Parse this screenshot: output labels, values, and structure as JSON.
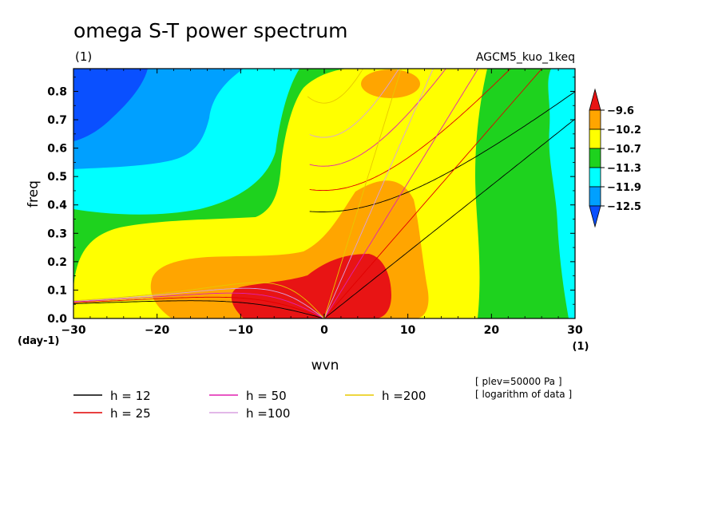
{
  "chart_data": {
    "type": "heatmap",
    "title": "omega S-T power spectrum",
    "subtitle_units": "(1)",
    "run_name": "AGCM5_kuo_1keq",
    "xlabel": "wvn",
    "ylabel": "freq",
    "x_units": "(1)",
    "y_units": "(day-1)",
    "xlim": [
      -30,
      30
    ],
    "ylim": [
      0.0,
      0.88
    ],
    "x_ticks": [
      -30,
      -20,
      -10,
      0,
      10,
      20,
      30
    ],
    "x_tick_labels": [
      "−30",
      "−20",
      "−10",
      "0",
      "10",
      "20",
      "30"
    ],
    "y_ticks": [
      0.0,
      0.1,
      0.2,
      0.3,
      0.4,
      0.5,
      0.6,
      0.7,
      0.8
    ],
    "y_tick_labels": [
      "0.0",
      "0.1",
      "0.2",
      "0.3",
      "0.4",
      "0.5",
      "0.6",
      "0.7",
      "0.8"
    ],
    "colorbar": {
      "levels": [
        "−9.6",
        "−10.2",
        "−10.7",
        "−11.3",
        "−11.9",
        "−12.5"
      ],
      "colors": [
        "#e81414",
        "#ffa500",
        "#ffff00",
        "#1ed21e",
        "#00ffff",
        "#00a0ff",
        "#0a50ff"
      ]
    },
    "dispersion_curves": [
      {
        "label": "h = 12",
        "h": 12,
        "color": "#000000"
      },
      {
        "label": "h = 25",
        "h": 25,
        "color": "#e00000"
      },
      {
        "label": "h = 50",
        "h": 50,
        "color": "#e020b0"
      },
      {
        "label": "h =100",
        "h": 100,
        "color": "#d8a0e0"
      },
      {
        "label": "h =200",
        "h": 200,
        "color": "#e8c800"
      }
    ],
    "notes": [
      "[ plev=50000 Pa ]",
      "[ logarithm of data ]"
    ]
  }
}
